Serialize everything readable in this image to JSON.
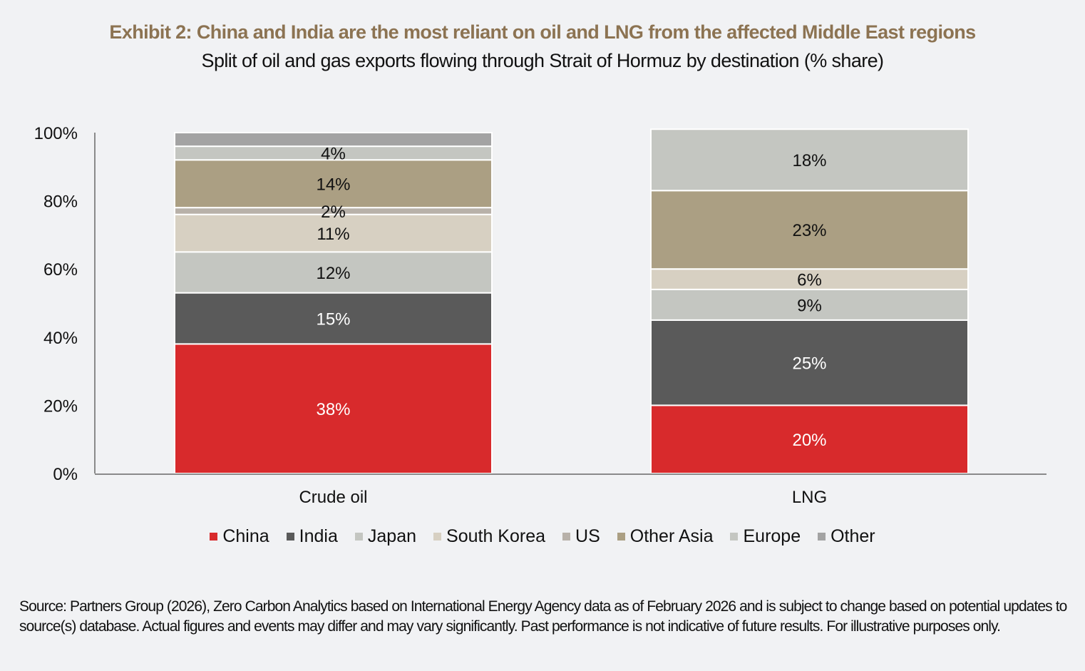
{
  "header": {
    "title": "Exhibit 2: China and India are the most reliant on oil and LNG from the affected Middle East regions",
    "subtitle": "Split of oil and gas exports flowing through Strait of Hormuz by destination (% share)"
  },
  "footer": {
    "source": "Source: Partners Group (2026), Zero Carbon Analytics based on International Energy Agency data as of February 2026 and is subject to change based on potential updates to source(s) database. Actual figures and events may differ and may vary significantly. Past performance is not indicative of future results. For illustrative purposes only."
  },
  "chart_data": {
    "type": "bar",
    "stacked": true,
    "title": "Exhibit 2: China and India are the most reliant on oil and LNG from the affected Middle East regions",
    "subtitle": "Split of oil and gas exports flowing through Strait of Hormuz by destination (% share)",
    "xlabel": "",
    "ylabel": "",
    "categories": [
      "Crude oil",
      "LNG"
    ],
    "ylim": [
      0,
      100
    ],
    "yticks": [
      0,
      20,
      40,
      60,
      80,
      100
    ],
    "ytick_labels": [
      "0%",
      "20%",
      "40%",
      "60%",
      "80%",
      "100%"
    ],
    "grid": false,
    "legend_position": "bottom",
    "series": [
      {
        "name": "China",
        "color": "#d82a2c",
        "label_color": "#ffffff",
        "values": [
          38,
          20
        ],
        "labels": [
          "38%",
          "20%"
        ]
      },
      {
        "name": "India",
        "color": "#5a5a5a",
        "label_color": "#ffffff",
        "values": [
          15,
          25
        ],
        "labels": [
          "15%",
          "25%"
        ]
      },
      {
        "name": "Japan",
        "color": "#c4c6c1",
        "label_color": "#111111",
        "values": [
          12,
          9
        ],
        "labels": [
          "12%",
          "9%"
        ]
      },
      {
        "name": "South Korea",
        "color": "#d7d0c2",
        "label_color": "#111111",
        "values": [
          11,
          6
        ],
        "labels": [
          "11%",
          "6%"
        ]
      },
      {
        "name": "US",
        "color": "#b8b1a9",
        "label_color": "#111111",
        "values": [
          2,
          0
        ],
        "labels": [
          "2%",
          ""
        ]
      },
      {
        "name": "Other Asia",
        "color": "#ab9f83",
        "label_color": "#111111",
        "values": [
          14,
          23
        ],
        "labels": [
          "14%",
          "23%"
        ]
      },
      {
        "name": "Europe",
        "color": "#c4c6c1",
        "label_color": "#111111",
        "values": [
          4,
          18
        ],
        "labels": [
          "4%",
          "18%"
        ]
      },
      {
        "name": "Other",
        "color": "#a3a3a3",
        "label_color": "#111111",
        "values": [
          4,
          0
        ],
        "labels": [
          "",
          ""
        ]
      }
    ]
  }
}
